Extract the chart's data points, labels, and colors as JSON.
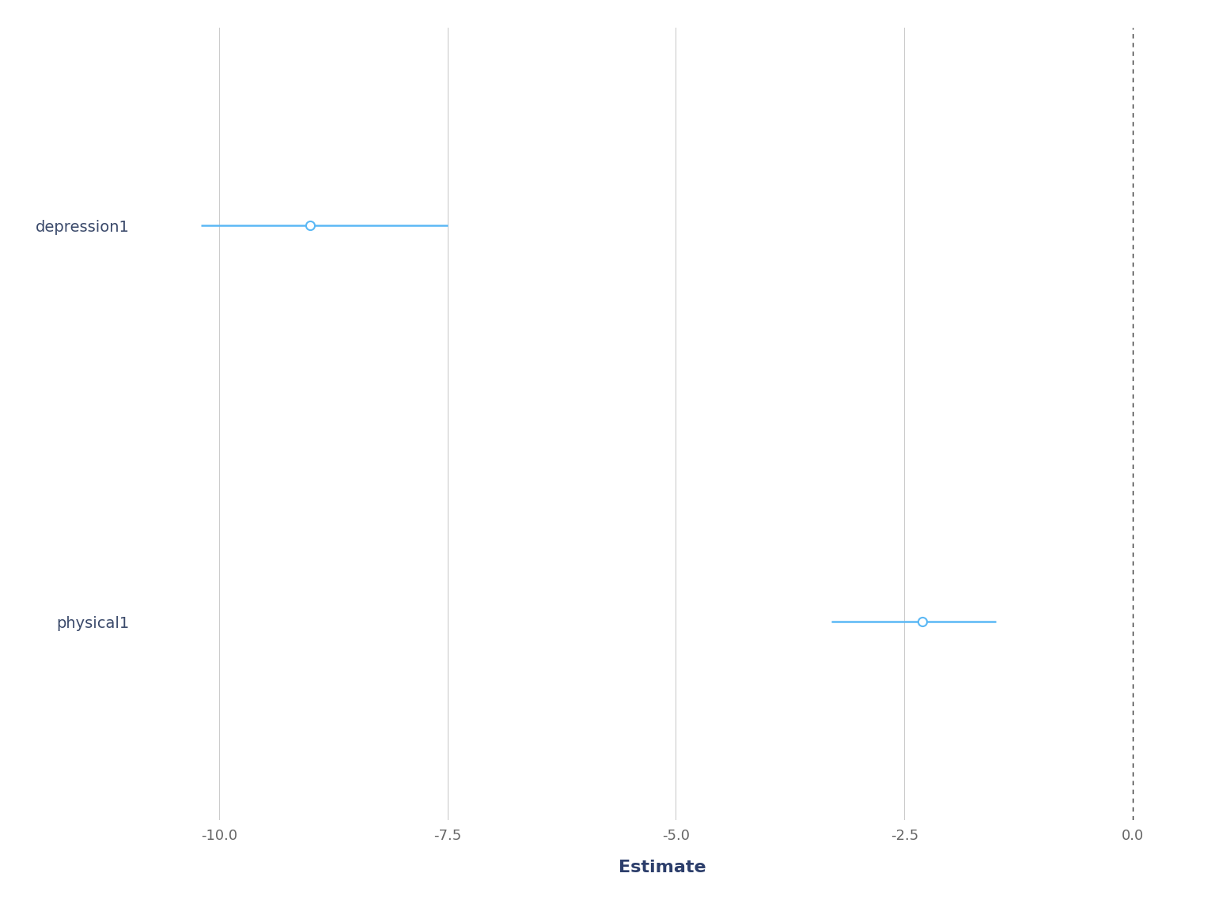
{
  "variables": [
    "depression1",
    "physical1"
  ],
  "estimates": [
    -9.0,
    -2.3
  ],
  "ci_low": [
    -10.2,
    -3.3
  ],
  "ci_high": [
    -7.5,
    -1.5
  ],
  "xlim": [
    -10.8,
    0.5
  ],
  "xticks": [
    -10.0,
    -7.5,
    -5.0,
    -2.5,
    0.0
  ],
  "xlabel": "Estimate",
  "line_color": "#5BB8F5",
  "marker_color": "#5BB8F5",
  "background_color": "#FFFFFF",
  "grid_color": "#CCCCCC",
  "zero_line_color": "#333333",
  "label_color": "#3B4A6B",
  "axis_label_color": "#2C3E6B",
  "tick_label_color": "#666666",
  "line_width": 1.8,
  "marker_size": 8,
  "marker_linewidth": 1.5,
  "ytick_fontsize": 14,
  "xtick_fontsize": 13,
  "xlabel_fontsize": 16,
  "y_depression": 1.0,
  "y_physical": 0.0,
  "ylim": [
    -0.5,
    1.5
  ]
}
